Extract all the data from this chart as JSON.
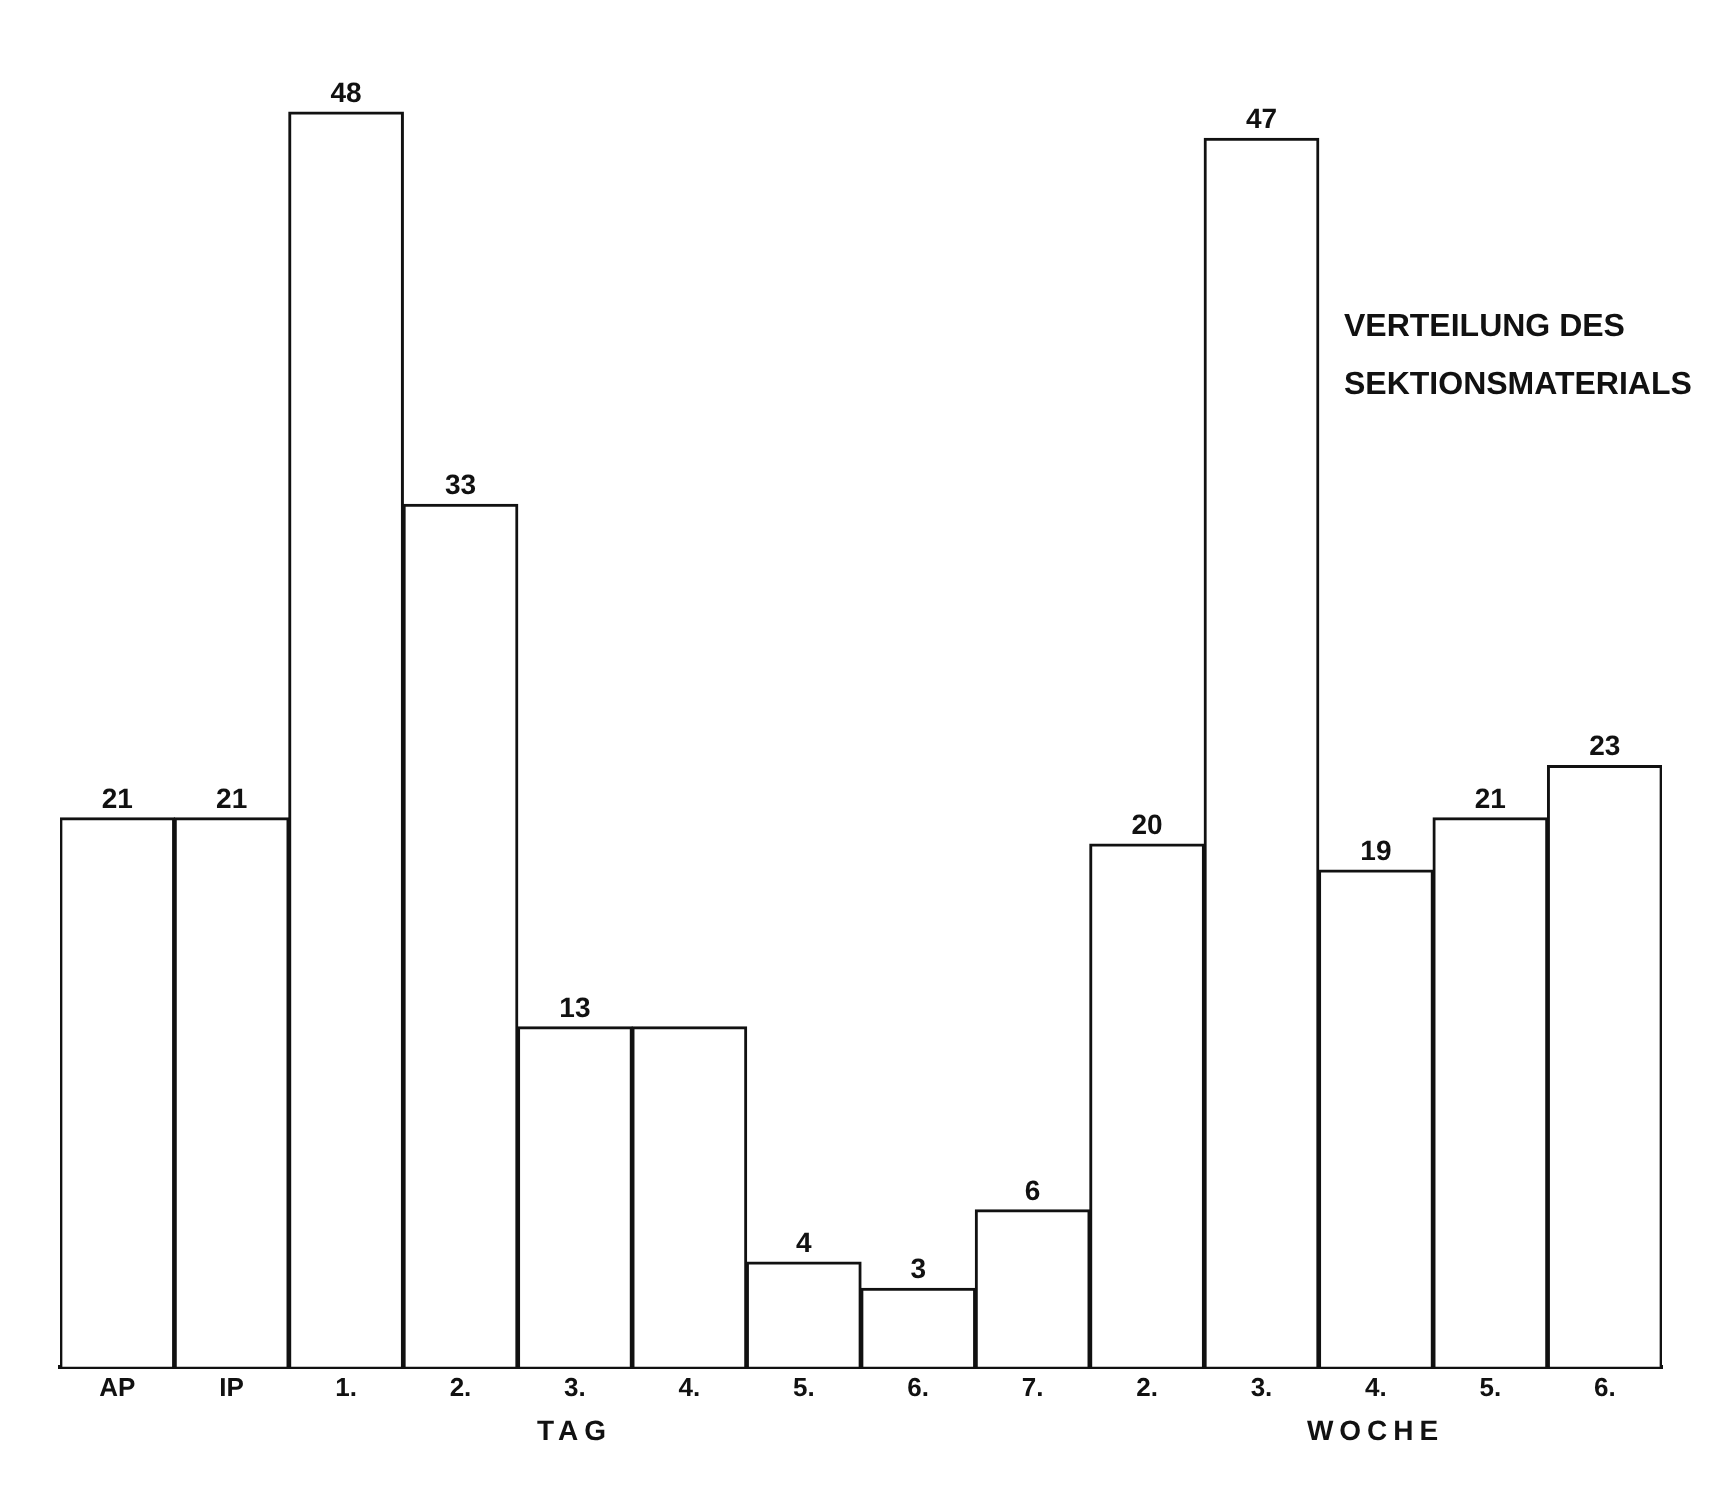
{
  "chart_data": {
    "type": "bar",
    "title": "VERTEILUNG DES SEKTIONSMATERIALS",
    "categories": [
      "AP",
      "IP",
      "1.",
      "2.",
      "3.",
      "4.",
      "5.",
      "6.",
      "7.",
      "2.",
      "3.",
      "4.",
      "5.",
      "6."
    ],
    "values": [
      21,
      21,
      48,
      33,
      13,
      13,
      4,
      3,
      6,
      20,
      47,
      19,
      21,
      23
    ],
    "value_labels": [
      "21",
      "21",
      "48",
      "33",
      "13",
      null,
      "4",
      "3",
      "6",
      "20",
      "47",
      "19",
      "21",
      "23"
    ],
    "color": "#ffffff",
    "annotations": [
      "TAG",
      "WOCHE"
    ],
    "grid": false,
    "legend": false
  }
}
